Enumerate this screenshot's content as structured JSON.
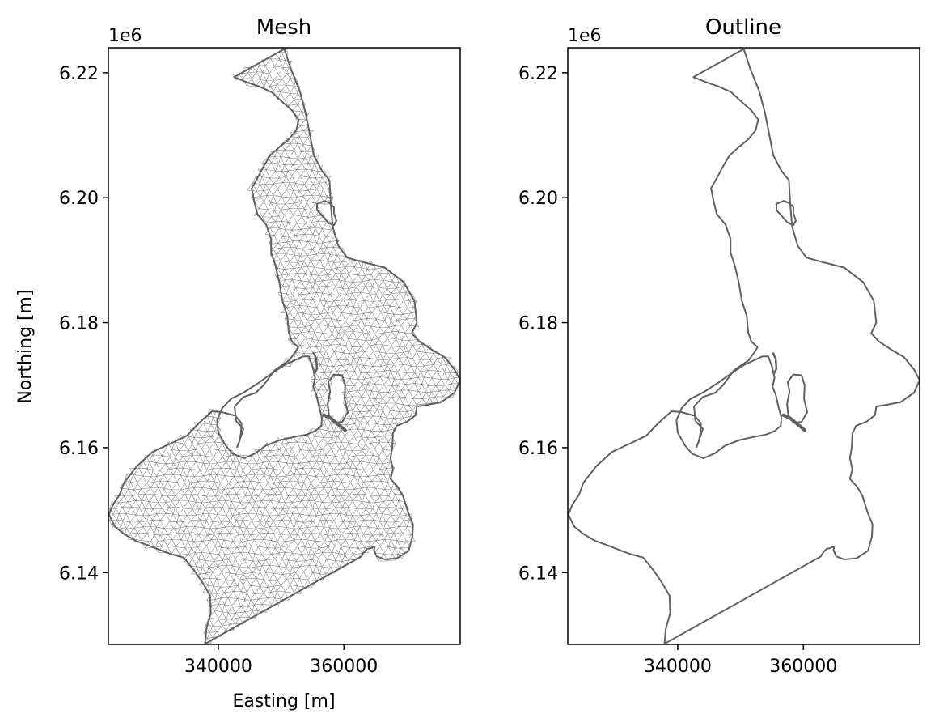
{
  "figure": {
    "background": "#ffffff"
  },
  "chart_data": [
    {
      "type": "mesh",
      "title": "Mesh",
      "xlabel": "Easting [m]",
      "ylabel": "Northing [m]",
      "y_offset_label": "1e6",
      "xlim": [
        322500,
        378500
      ],
      "ylim": [
        6128500,
        6224000
      ],
      "xticks": [
        340000,
        360000
      ],
      "xtick_labels": [
        "340000",
        "360000"
      ],
      "yticks": [
        6140000,
        6160000,
        6180000,
        6200000,
        6220000
      ],
      "ytick_labels": [
        "6.14",
        "6.16",
        "6.18",
        "6.20",
        "6.22"
      ],
      "outline_color": "#606060",
      "mesh_color": "#8c8c8c",
      "mesh_spacing_m": 1200
    },
    {
      "type": "line",
      "title": "Outline",
      "xlabel": "",
      "ylabel": "",
      "y_offset_label": "1e6",
      "xlim": [
        322500,
        378500
      ],
      "ylim": [
        6128500,
        6224000
      ],
      "xticks": [
        340000,
        360000
      ],
      "xtick_labels": [
        "340000",
        "360000"
      ],
      "yticks": [
        6140000,
        6160000,
        6180000,
        6200000,
        6220000
      ],
      "ytick_labels": [
        "6.14",
        "6.16",
        "6.18",
        "6.20",
        "6.22"
      ],
      "outline_color": "#606060"
    }
  ],
  "outline": {
    "outer": [
      [
        350500,
        6223800
      ],
      [
        351600,
        6220500
      ],
      [
        353000,
        6217000
      ],
      [
        353900,
        6213500
      ],
      [
        354600,
        6210000
      ],
      [
        355200,
        6206800
      ],
      [
        356500,
        6204300
      ],
      [
        357700,
        6202800
      ],
      [
        357900,
        6199000
      ],
      [
        358200,
        6195400
      ],
      [
        359100,
        6192300
      ],
      [
        360500,
        6190400
      ],
      [
        363000,
        6189700
      ],
      [
        365000,
        6189200
      ],
      [
        366500,
        6188800
      ],
      [
        367800,
        6187800
      ],
      [
        369500,
        6186500
      ],
      [
        371200,
        6183500
      ],
      [
        371600,
        6180000
      ],
      [
        370800,
        6178300
      ],
      [
        372000,
        6177000
      ],
      [
        374100,
        6175600
      ],
      [
        376000,
        6174500
      ],
      [
        377600,
        6172500
      ],
      [
        378500,
        6170800
      ],
      [
        377600,
        6168800
      ],
      [
        375500,
        6167300
      ],
      [
        373000,
        6166800
      ],
      [
        371600,
        6166600
      ],
      [
        371400,
        6165200
      ],
      [
        370100,
        6164200
      ],
      [
        368400,
        6163500
      ],
      [
        367800,
        6162300
      ],
      [
        367700,
        6160100
      ],
      [
        367400,
        6158300
      ],
      [
        367800,
        6156500
      ],
      [
        367400,
        6155000
      ],
      [
        368500,
        6153800
      ],
      [
        369400,
        6152300
      ],
      [
        370200,
        6149700
      ],
      [
        371000,
        6147700
      ],
      [
        370900,
        6145800
      ],
      [
        370300,
        6143500
      ],
      [
        368500,
        6142300
      ],
      [
        366500,
        6142100
      ],
      [
        365200,
        6142600
      ],
      [
        364800,
        6143600
      ],
      [
        364900,
        6144200
      ],
      [
        364200,
        6143900
      ],
      [
        363700,
        6143800
      ],
      [
        363000,
        6143000
      ],
      [
        362800,
        6142600
      ],
      [
        345000,
        6132600
      ],
      [
        337900,
        6128600
      ],
      [
        338100,
        6131000
      ],
      [
        338800,
        6133500
      ],
      [
        338700,
        6136300
      ],
      [
        337600,
        6138200
      ],
      [
        336200,
        6140300
      ],
      [
        334500,
        6142400
      ],
      [
        332700,
        6142900
      ],
      [
        331000,
        6143500
      ],
      [
        329000,
        6144300
      ],
      [
        326800,
        6145100
      ],
      [
        324800,
        6146300
      ],
      [
        323500,
        6147400
      ],
      [
        322600,
        6149300
      ],
      [
        323200,
        6150800
      ],
      [
        324300,
        6152500
      ],
      [
        325000,
        6154400
      ],
      [
        327000,
        6157000
      ],
      [
        329500,
        6159300
      ],
      [
        332500,
        6160700
      ],
      [
        335000,
        6161900
      ],
      [
        337000,
        6164000
      ],
      [
        339000,
        6165800
      ],
      [
        340500,
        6165700
      ],
      [
        342700,
        6165100
      ],
      [
        343700,
        6163900
      ],
      [
        343600,
        6162400
      ],
      [
        343400,
        6161100
      ],
      [
        343000,
        6160100
      ],
      [
        343500,
        6161500
      ],
      [
        344000,
        6163000
      ],
      [
        342800,
        6164300
      ],
      [
        342600,
        6166600
      ],
      [
        344000,
        6168100
      ],
      [
        346000,
        6168800
      ],
      [
        347200,
        6170000
      ],
      [
        349000,
        6172400
      ],
      [
        351300,
        6174000
      ],
      [
        352300,
        6175400
      ],
      [
        352700,
        6176100
      ],
      [
        351700,
        6177000
      ],
      [
        351200,
        6178500
      ],
      [
        351000,
        6181000
      ],
      [
        350200,
        6183500
      ],
      [
        349700,
        6186500
      ],
      [
        349100,
        6189100
      ],
      [
        348400,
        6191200
      ],
      [
        348400,
        6193400
      ],
      [
        347600,
        6195700
      ],
      [
        346200,
        6197400
      ],
      [
        345700,
        6199500
      ],
      [
        345300,
        6201500
      ],
      [
        346200,
        6203100
      ],
      [
        347200,
        6205000
      ],
      [
        348200,
        6206700
      ],
      [
        349700,
        6208100
      ],
      [
        351200,
        6209300
      ],
      [
        352400,
        6210800
      ],
      [
        352800,
        6212500
      ],
      [
        351700,
        6214000
      ],
      [
        350000,
        6215500
      ],
      [
        348500,
        6216900
      ],
      [
        346500,
        6217800
      ],
      [
        344500,
        6218500
      ],
      [
        342500,
        6219300
      ],
      [
        350500,
        6223800
      ]
    ],
    "holes": [
      [
        [
          354400,
          6174600
        ],
        [
          355000,
          6173000
        ],
        [
          355400,
          6171200
        ],
        [
          355100,
          6169700
        ],
        [
          355600,
          6168500
        ],
        [
          356000,
          6166700
        ],
        [
          356500,
          6164800
        ],
        [
          356400,
          6163500
        ],
        [
          355500,
          6162700
        ],
        [
          354100,
          6162100
        ],
        [
          352000,
          6161700
        ],
        [
          349800,
          6161200
        ],
        [
          347500,
          6160300
        ],
        [
          345900,
          6159100
        ],
        [
          344100,
          6158300
        ],
        [
          342300,
          6159000
        ],
        [
          341200,
          6160300
        ],
        [
          340000,
          6162400
        ],
        [
          339800,
          6164400
        ],
        [
          340600,
          6166300
        ],
        [
          342000,
          6167800
        ],
        [
          344000,
          6168800
        ],
        [
          346300,
          6170300
        ],
        [
          348700,
          6172000
        ],
        [
          350500,
          6173200
        ],
        [
          352200,
          6174000
        ],
        [
          353500,
          6174600
        ],
        [
          354400,
          6174600
        ]
      ],
      [
        [
          358400,
          6171700
        ],
        [
          359700,
          6171600
        ],
        [
          360200,
          6170000
        ],
        [
          360100,
          6167800
        ],
        [
          360600,
          6165700
        ],
        [
          359700,
          6164100
        ],
        [
          358400,
          6164000
        ],
        [
          357600,
          6165200
        ],
        [
          357400,
          6167000
        ],
        [
          357800,
          6169000
        ],
        [
          357500,
          6170500
        ],
        [
          358400,
          6171700
        ]
      ],
      [
        [
          356900,
          6199500
        ],
        [
          357800,
          6199100
        ],
        [
          358400,
          6198500
        ],
        [
          358400,
          6197500
        ],
        [
          358800,
          6196300
        ],
        [
          358400,
          6195600
        ],
        [
          357500,
          6196000
        ],
        [
          356700,
          6196900
        ],
        [
          355700,
          6198000
        ],
        [
          355700,
          6199000
        ],
        [
          356900,
          6199500
        ]
      ]
    ],
    "strokes": [
      [
        [
          356800,
          6165200
        ],
        [
          357900,
          6164700
        ],
        [
          359000,
          6163800
        ],
        [
          360200,
          6162800
        ]
      ],
      [
        [
          355200,
          6175100
        ],
        [
          355600,
          6174200
        ],
        [
          355700,
          6172600
        ],
        [
          355300,
          6171900
        ]
      ]
    ]
  }
}
